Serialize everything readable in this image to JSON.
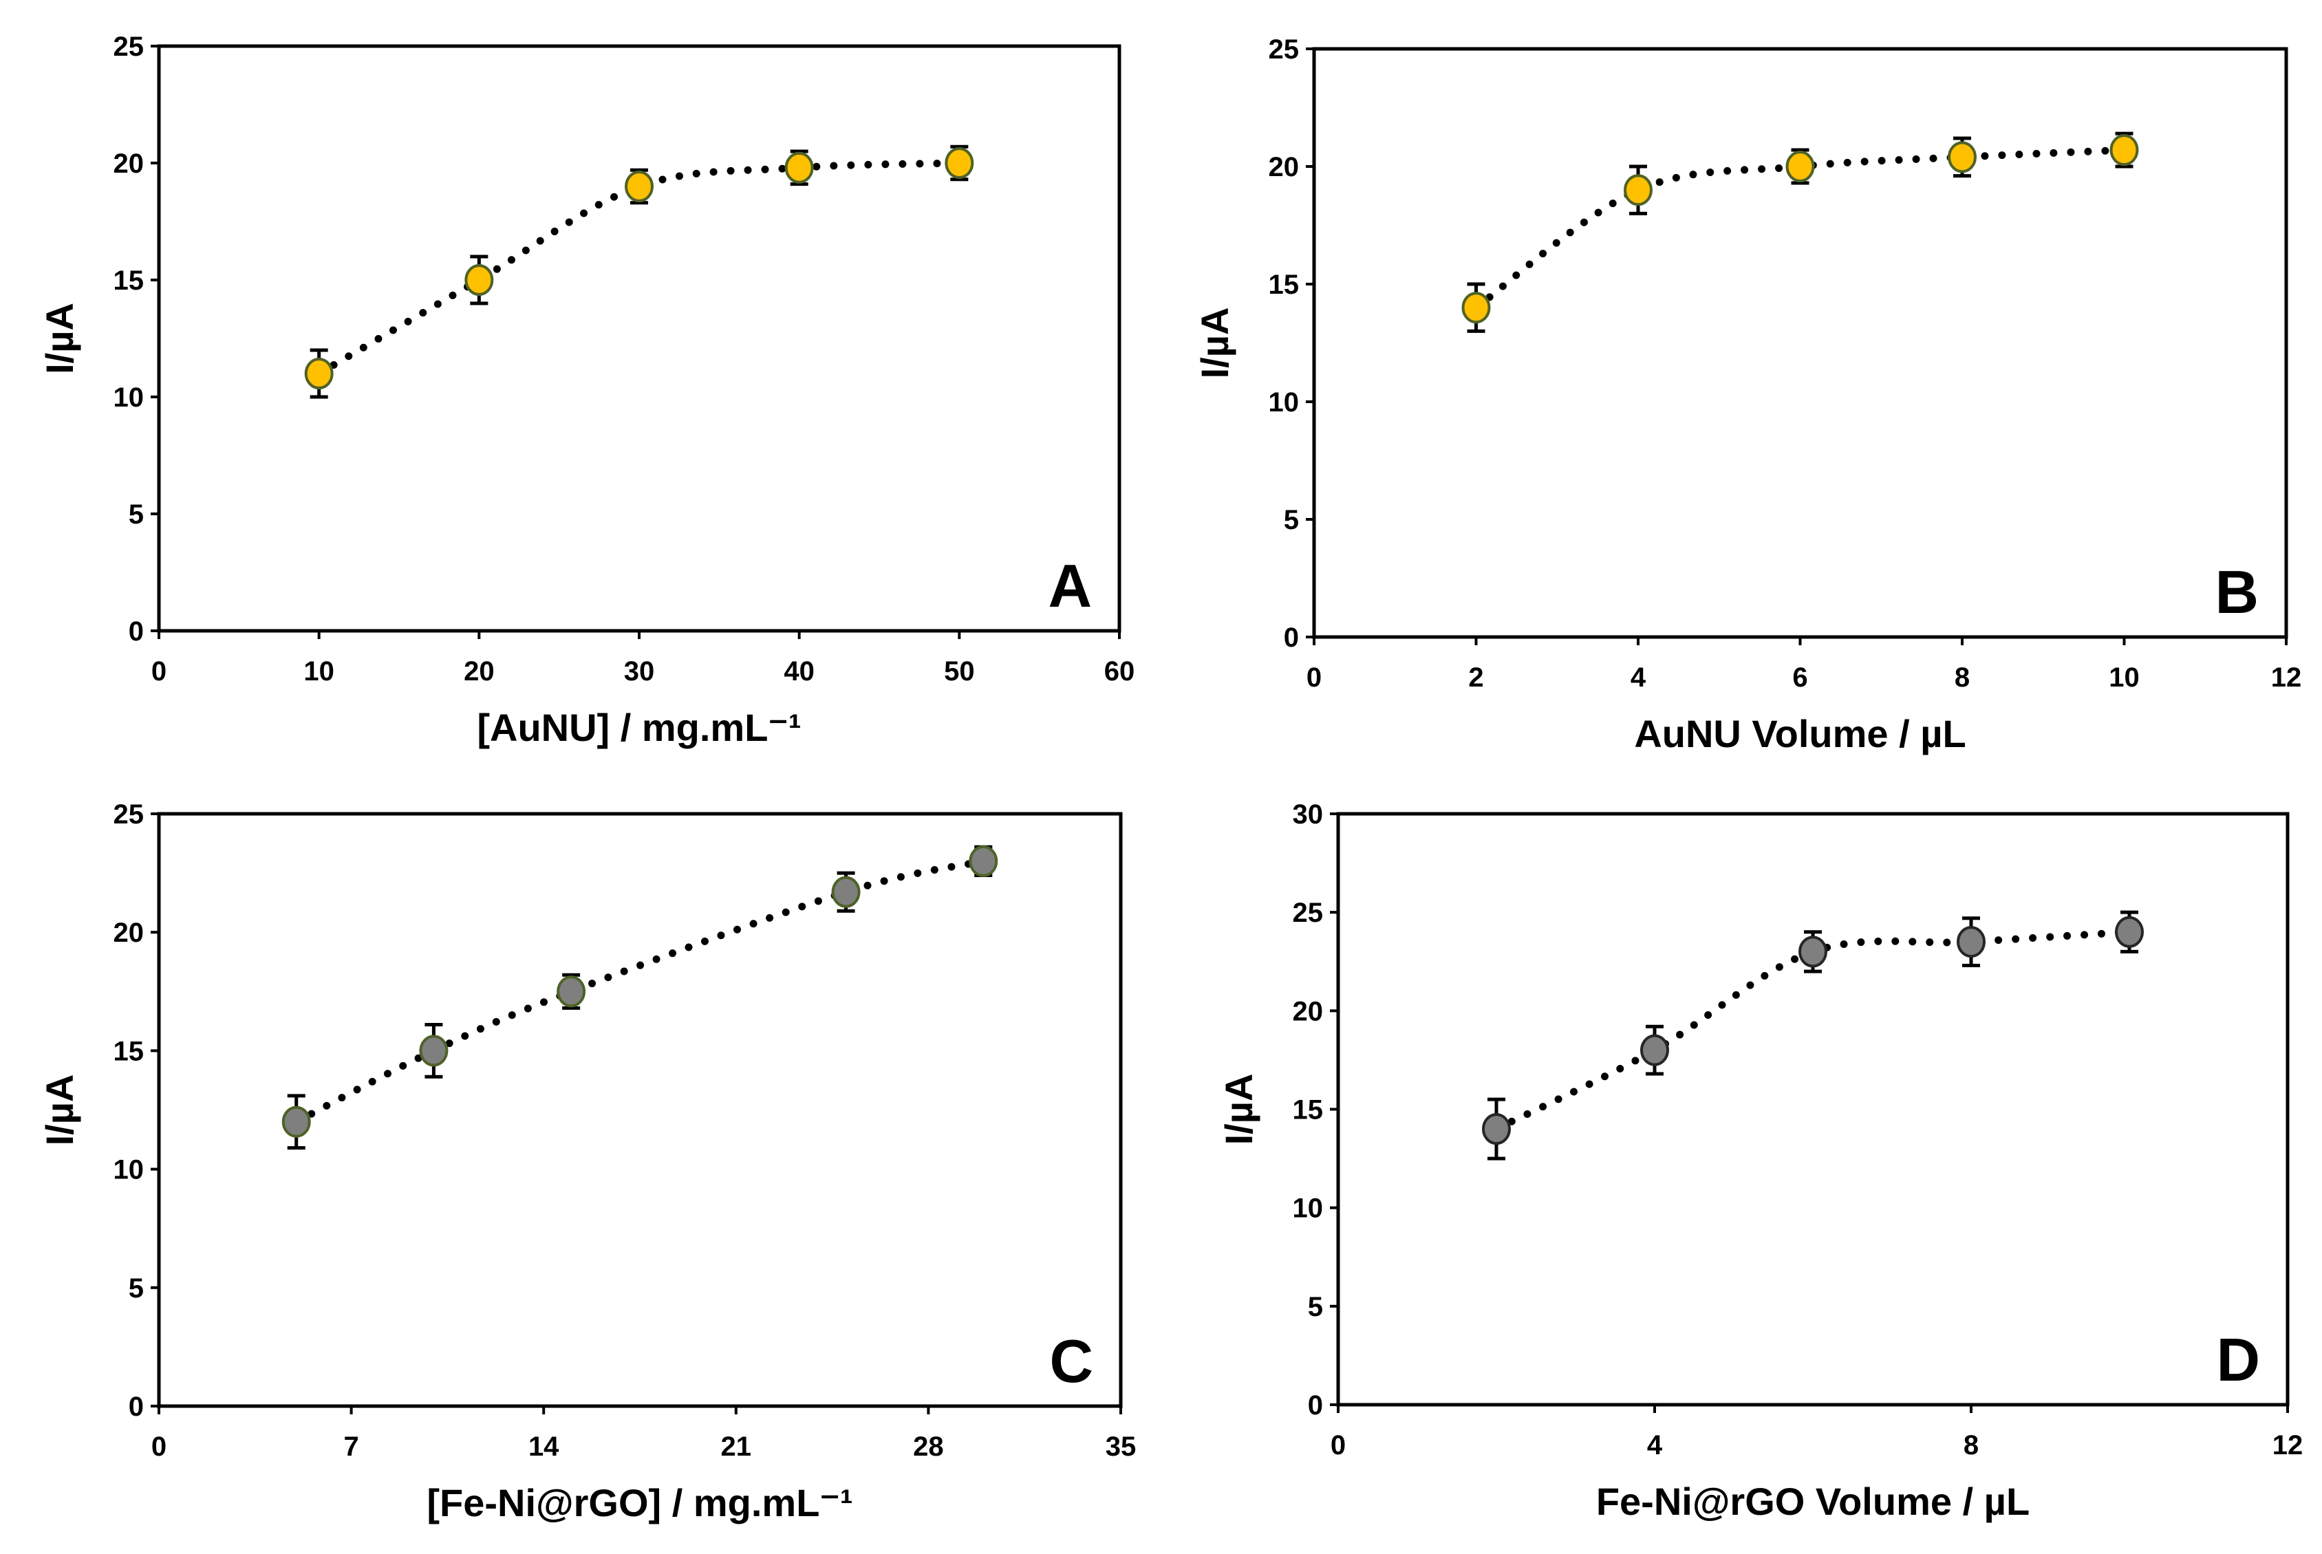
{
  "chart_data": [
    {
      "panel": "A",
      "type": "scatter",
      "xlabel": "[AuNU] / mg.mL⁻¹",
      "ylabel": "I/µA",
      "xlim": [
        0,
        60
      ],
      "xticks": [
        0,
        10,
        20,
        30,
        40,
        50,
        60
      ],
      "ylim": [
        0,
        25
      ],
      "yticks": [
        0,
        5,
        10,
        15,
        20,
        25
      ],
      "marker_color": "#FFC000",
      "marker_edge": "#4F6228",
      "line": "dotted smooth",
      "grid": false,
      "x": [
        10,
        20,
        30,
        40,
        50
      ],
      "y": [
        11,
        15,
        19,
        19.8,
        20
      ],
      "err": [
        1,
        1,
        0.7,
        0.7,
        0.7
      ]
    },
    {
      "panel": "B",
      "type": "scatter",
      "xlabel": "AuNU Volume / µL",
      "ylabel": "I/µA",
      "xlim": [
        0,
        12
      ],
      "xticks": [
        0,
        2,
        4,
        6,
        8,
        10,
        12
      ],
      "ylim": [
        0,
        25
      ],
      "yticks": [
        0,
        5,
        10,
        15,
        20,
        25
      ],
      "marker_color": "#FFC000",
      "marker_edge": "#4F6228",
      "line": "dotted smooth",
      "grid": false,
      "x": [
        2,
        4,
        6,
        8,
        10
      ],
      "y": [
        14,
        19,
        20,
        20.4,
        20.7
      ],
      "err": [
        1,
        1,
        0.7,
        0.8,
        0.7
      ]
    },
    {
      "panel": "C",
      "type": "scatter",
      "xlabel": "[Fe-Ni@rGO] / mg.mL⁻¹",
      "ylabel": "I/µA",
      "xlim": [
        0,
        35
      ],
      "xticks": [
        0,
        7,
        14,
        21,
        28,
        35
      ],
      "ylim": [
        0,
        25
      ],
      "yticks": [
        0,
        5,
        10,
        15,
        20,
        25
      ],
      "marker_color": "#7F7F7F",
      "marker_edge": "#4F6228",
      "line": "dotted smooth",
      "grid": false,
      "x": [
        5,
        10,
        15,
        25,
        30
      ],
      "y": [
        12,
        15,
        17.5,
        21.7,
        23
      ],
      "err": [
        1.1,
        1.1,
        0.7,
        0.8,
        0.6
      ]
    },
    {
      "panel": "D",
      "type": "scatter",
      "xlabel": "Fe-Ni@rGO Volume / µL",
      "ylabel": "I/µA",
      "xlim": [
        0,
        12
      ],
      "xticks": [
        0,
        4,
        8,
        12
      ],
      "ylim": [
        0,
        30
      ],
      "yticks": [
        0,
        5,
        10,
        15,
        20,
        25,
        30
      ],
      "marker_color": "#7F7F7F",
      "marker_edge": "#262626",
      "line": "dotted smooth",
      "grid": false,
      "x": [
        2,
        4,
        6,
        8,
        10
      ],
      "y": [
        14,
        18,
        23,
        23.5,
        24
      ],
      "err": [
        1.5,
        1.2,
        1,
        1.2,
        1
      ]
    }
  ]
}
